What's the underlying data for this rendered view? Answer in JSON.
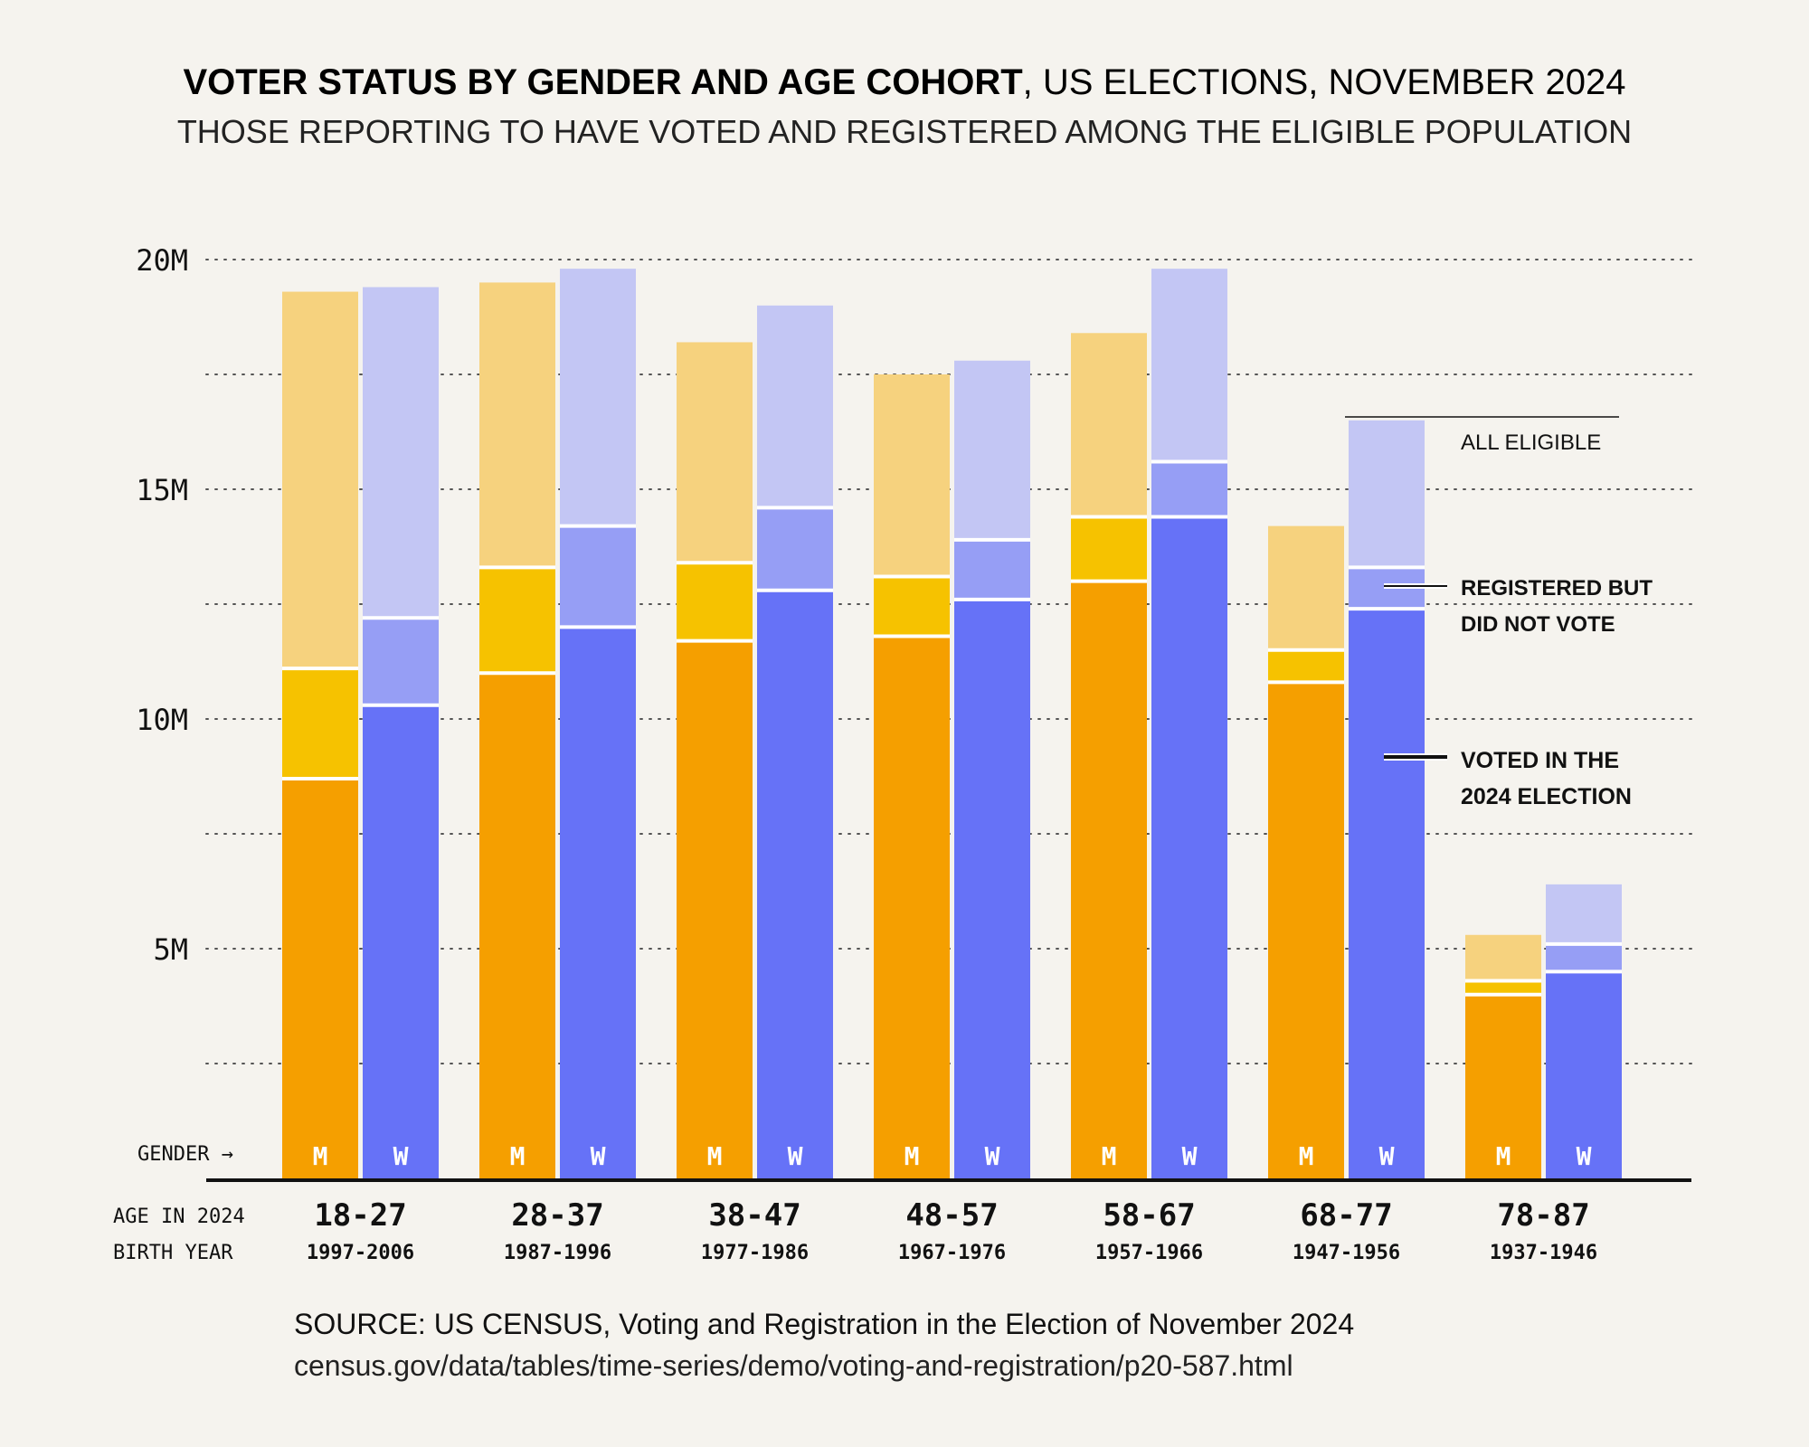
{
  "header": {
    "title_bold": "VOTER STATUS BY GENDER AND AGE COHORT",
    "title_rest": ", US ELECTIONS, NOVEMBER 2024",
    "subtitle": "THOSE REPORTING TO HAVE VOTED AND REGISTERED AMONG THE ELIGIBLE POPULATION"
  },
  "axis": {
    "gender_label": "GENDER →",
    "age_label": "AGE IN 2024",
    "birth_label": "BIRTH YEAR"
  },
  "legend": {
    "all_eligible": "ALL ELIGIBLE",
    "registered_line1": "REGISTERED BUT",
    "registered_line2": "DID NOT VOTE",
    "voted_line1": "VOTED IN THE",
    "voted_line2": "2024 ELECTION"
  },
  "source": {
    "line1": "SOURCE: US CENSUS, Voting and Registration in the Election of November 2024",
    "line2": "census.gov/data/tables/time-series/demo/voting-and-registration/p20-587.html"
  },
  "colors": {
    "men_voted": "#f59f00",
    "men_registered": "#f6c200",
    "men_eligible": "#f6d27e",
    "women_voted": "#6672f7",
    "women_registered": "#969ef5",
    "women_eligible": "#c3c6f4",
    "background": "#f5f3ee"
  },
  "chart_data": {
    "type": "bar",
    "stacked": true,
    "yticks": [
      "20M",
      "15M",
      "10M",
      "5M"
    ],
    "ylim": [
      0,
      20
    ],
    "grid": "dotted, every 2.5M",
    "categories": [
      {
        "age": "18-27",
        "birth": "1997-2006"
      },
      {
        "age": "28-37",
        "birth": "1987-1996"
      },
      {
        "age": "38-47",
        "birth": "1977-1986"
      },
      {
        "age": "48-57",
        "birth": "1967-1976"
      },
      {
        "age": "58-67",
        "birth": "1957-1966"
      },
      {
        "age": "68-77",
        "birth": "1947-1956"
      },
      {
        "age": "78-87",
        "birth": "1937-1946"
      }
    ],
    "genders": [
      "M",
      "W"
    ],
    "series": {
      "M": {
        "voted": [
          8.7,
          11.0,
          11.7,
          11.8,
          13.0,
          10.8,
          4.0
        ],
        "registered": [
          11.1,
          13.3,
          13.4,
          13.1,
          14.4,
          11.5,
          4.3
        ],
        "eligible": [
          19.3,
          19.5,
          18.2,
          17.5,
          18.4,
          14.2,
          5.3
        ]
      },
      "W": {
        "voted": [
          10.3,
          12.0,
          12.8,
          12.6,
          14.4,
          12.4,
          4.5
        ],
        "registered": [
          12.2,
          14.2,
          14.6,
          13.9,
          15.6,
          13.3,
          5.1
        ],
        "eligible": [
          19.4,
          19.8,
          19.0,
          17.8,
          19.8,
          16.5,
          6.4
        ]
      }
    }
  }
}
